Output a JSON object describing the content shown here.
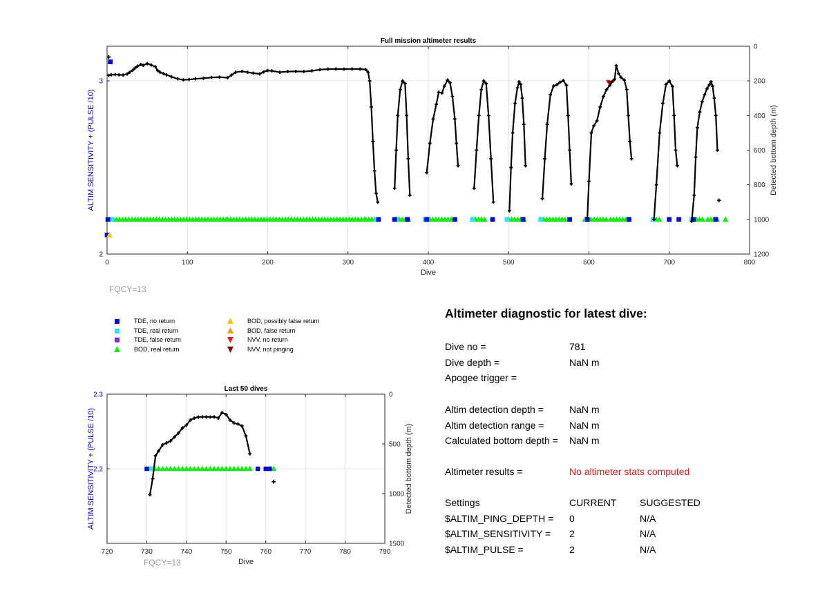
{
  "colors": {
    "axis_left": "#0000b8",
    "tde_no_return": "#0a0ad0",
    "tde_real_return": "#33dfff",
    "tde_false_return": "#7d2fd4",
    "bod_real_return": "#17e817",
    "bod_possibly_false": "#f5c518",
    "bod_false": "#f39a18",
    "nvv_no_return": "#e02020",
    "nvv_not_pinging": "#7a0a0a",
    "bottom_line": "#000000",
    "warning_text": "#d41c1c",
    "fqcy_text": "#9a9a9a"
  },
  "chart_data": [
    {
      "id": "full",
      "type": "line",
      "title": "Full mission altimeter results",
      "xlabel": "Dive",
      "ylabel_left": "ALTIM SENSITIVITY + (PULSE /10)",
      "ylabel_right": "Detected bottom depth (m)",
      "xlim": [
        0,
        800
      ],
      "ylim_left": [
        2,
        3.2
      ],
      "ylim_right": [
        0,
        1200
      ],
      "right_reversed": true,
      "x_ticks": [
        "0",
        "100",
        "200",
        "300",
        "400",
        "500",
        "600",
        "700",
        "800"
      ],
      "y_left_ticks": [
        "2",
        "3"
      ],
      "y_right_ticks": [
        "0",
        "200",
        "400",
        "600",
        "800",
        "1000",
        "1200"
      ],
      "grid": true,
      "fqcy_label": "FQCY=13",
      "bottom_depth_segments": [
        [
          [
            2,
            168
          ],
          [
            5,
            165
          ],
          [
            10,
            163
          ],
          [
            15,
            165
          ],
          [
            20,
            166
          ],
          [
            25,
            160
          ],
          [
            28,
            150
          ],
          [
            32,
            138
          ],
          [
            35,
            125
          ],
          [
            38,
            115
          ],
          [
            42,
            105
          ],
          [
            45,
            110
          ],
          [
            50,
            100
          ],
          [
            55,
            108
          ],
          [
            60,
            118
          ],
          [
            63,
            140
          ],
          [
            66,
            150
          ],
          [
            70,
            158
          ],
          [
            74,
            165
          ],
          [
            80,
            176
          ],
          [
            88,
            188
          ],
          [
            95,
            194
          ],
          [
            102,
            192
          ],
          [
            110,
            188
          ],
          [
            120,
            185
          ],
          [
            130,
            180
          ],
          [
            140,
            178
          ],
          [
            150,
            182
          ],
          [
            155,
            166
          ],
          [
            160,
            150
          ],
          [
            168,
            145
          ],
          [
            175,
            150
          ],
          [
            182,
            155
          ],
          [
            190,
            160
          ],
          [
            195,
            148
          ],
          [
            200,
            140
          ],
          [
            205,
            142
          ],
          [
            215,
            150
          ],
          [
            225,
            146
          ],
          [
            235,
            145
          ],
          [
            245,
            146
          ],
          [
            255,
            142
          ],
          [
            265,
            135
          ],
          [
            275,
            132
          ],
          [
            285,
            131
          ],
          [
            295,
            132
          ],
          [
            305,
            131
          ],
          [
            315,
            132
          ],
          [
            322,
            134
          ],
          [
            325,
            150
          ],
          [
            327,
            200
          ],
          [
            329,
            350
          ],
          [
            331,
            550
          ],
          [
            333,
            720
          ],
          [
            335,
            850
          ],
          [
            337,
            900
          ]
        ],
        [
          [
            358,
            820
          ],
          [
            360,
            600
          ],
          [
            362,
            400
          ],
          [
            365,
            250
          ],
          [
            368,
            200
          ],
          [
            371,
            215
          ],
          [
            373,
            400
          ],
          [
            375,
            650
          ],
          [
            377,
            860
          ]
        ],
        [
          [
            398,
            730
          ],
          [
            402,
            560
          ],
          [
            406,
            420
          ],
          [
            410,
            335
          ],
          [
            413,
            265
          ],
          [
            417,
            270
          ],
          [
            420,
            230
          ],
          [
            424,
            195
          ],
          [
            427,
            210
          ],
          [
            430,
            290
          ],
          [
            433,
            420
          ],
          [
            435,
            560
          ],
          [
            437,
            690
          ]
        ],
        [
          [
            457,
            820
          ],
          [
            460,
            600
          ],
          [
            463,
            400
          ],
          [
            466,
            250
          ],
          [
            469,
            200
          ],
          [
            472,
            215
          ],
          [
            475,
            400
          ],
          [
            478,
            650
          ],
          [
            481,
            900
          ]
        ],
        [
          [
            501,
            950
          ],
          [
            503,
            700
          ],
          [
            505,
            500
          ],
          [
            508,
            330
          ],
          [
            511,
            240
          ],
          [
            513,
            205
          ],
          [
            515,
            220
          ],
          [
            517,
            300
          ],
          [
            519,
            450
          ],
          [
            521,
            690
          ]
        ],
        [
          [
            542,
            880
          ],
          [
            545,
            650
          ],
          [
            548,
            450
          ],
          [
            552,
            280
          ],
          [
            556,
            230
          ],
          [
            560,
            222
          ],
          [
            564,
            208
          ],
          [
            568,
            198
          ],
          [
            572,
            225
          ],
          [
            574,
            400
          ],
          [
            576,
            600
          ],
          [
            578,
            795
          ]
        ],
        [
          [
            598,
            990
          ],
          [
            600,
            780
          ],
          [
            603,
            500
          ],
          [
            606,
            460
          ],
          [
            610,
            430
          ],
          [
            614,
            350
          ],
          [
            618,
            290
          ],
          [
            622,
            250
          ],
          [
            626,
            225
          ],
          [
            630,
            200
          ],
          [
            632,
            190
          ],
          [
            634,
            112
          ],
          [
            637,
            158
          ],
          [
            640,
            180
          ],
          [
            644,
            195
          ],
          [
            647,
            250
          ],
          [
            649,
            400
          ],
          [
            651,
            550
          ],
          [
            653,
            650
          ]
        ],
        [
          [
            681,
            1000
          ],
          [
            684,
            800
          ],
          [
            688,
            500
          ],
          [
            692,
            330
          ],
          [
            696,
            220
          ],
          [
            700,
            200
          ],
          [
            704,
            232
          ],
          [
            706,
            400
          ],
          [
            708,
            600
          ],
          [
            710,
            690
          ]
        ],
        [
          [
            728,
            1010
          ],
          [
            731,
            860
          ],
          [
            733,
            640
          ],
          [
            735,
            470
          ],
          [
            738,
            380
          ],
          [
            741,
            320
          ],
          [
            744,
            280
          ],
          [
            747,
            245
          ],
          [
            750,
            222
          ],
          [
            752,
            205
          ],
          [
            754,
            230
          ],
          [
            756,
            300
          ],
          [
            758,
            400
          ],
          [
            760,
            600
          ]
        ]
      ],
      "bottom_depth_isolated": [
        [
          2,
          62
        ],
        [
          762,
          890
        ]
      ],
      "bod_real_return_ranges": [
        [
          8,
          30
        ],
        [
          31,
          150
        ],
        [
          150,
          322
        ],
        [
          322,
          334
        ],
        [
          360,
          376
        ],
        [
          398,
          430
        ],
        [
          455,
          472
        ],
        [
          500,
          519
        ],
        [
          540,
          573
        ],
        [
          595,
          625
        ],
        [
          627,
          650
        ],
        [
          680,
          688
        ],
        [
          730,
          745
        ],
        [
          748,
          761
        ]
      ],
      "bod_real_return_points": [
        [
          8
        ],
        [
          770
        ]
      ],
      "tde_no_return_x": [
        1,
        338,
        358,
        374,
        398,
        433,
        480,
        518,
        576,
        598,
        650,
        700,
        712,
        730,
        758
      ],
      "tde_real_return_x": [
        6,
        335,
        360,
        396,
        455,
        498,
        540,
        597,
        680,
        728
      ],
      "tde_no_return_high": [
        [
          4,
          3.11
        ]
      ],
      "tde_no_return_low": [
        [
          0,
          2.11
        ]
      ],
      "bod_possibly_false_low": [
        [
          3,
          2.11
        ]
      ],
      "nvv_no_return_points": [
        [
          624,
          2.995
        ]
      ],
      "nvv_not_pinging_points": [
        [
          626,
          2.99
        ]
      ]
    },
    {
      "id": "last50",
      "type": "line",
      "title": "Last 50 dives",
      "xlabel": "Dive",
      "ylabel_left": "ALTIM SENSITIVITY + (PULSE /10)",
      "ylabel_right": "Detected bottom depth (m)",
      "xlim": [
        720,
        790
      ],
      "ylim_left": [
        2.1,
        2.3
      ],
      "ylim_right": [
        0,
        1500
      ],
      "right_reversed": true,
      "x_ticks": [
        "720",
        "730",
        "740",
        "750",
        "760",
        "770",
        "780",
        "790"
      ],
      "y_left_ticks": [
        "2.2",
        "2.3"
      ],
      "y_right_ticks": [
        "0",
        "500",
        "1000",
        "1500"
      ],
      "grid": true,
      "fqcy_label": "FQCY=13",
      "bottom_depth": [
        [
          730.8,
          1010
        ],
        [
          731.5,
          850
        ],
        [
          732.2,
          620
        ],
        [
          733,
          570
        ],
        [
          734,
          510
        ],
        [
          735,
          490
        ],
        [
          736,
          470
        ],
        [
          737,
          430
        ],
        [
          738,
          390
        ],
        [
          739,
          340
        ],
        [
          740,
          310
        ],
        [
          741,
          260
        ],
        [
          742,
          240
        ],
        [
          743,
          230
        ],
        [
          744,
          228
        ],
        [
          745,
          228
        ],
        [
          746,
          230
        ],
        [
          747,
          228
        ],
        [
          748,
          240
        ],
        [
          749,
          185
        ],
        [
          750,
          205
        ],
        [
          751,
          260
        ],
        [
          752,
          290
        ],
        [
          753,
          300
        ],
        [
          754,
          320
        ],
        [
          755,
          420
        ],
        [
          756,
          600
        ]
      ],
      "bottom_depth_isolated": [
        [
          762,
          880
        ]
      ],
      "bod_real_return_x": [
        731,
        732,
        733,
        734,
        735,
        736,
        737,
        738,
        739,
        740,
        741,
        742,
        743,
        744,
        745,
        746,
        747,
        748,
        749,
        750,
        751,
        752,
        753,
        754,
        755,
        756,
        761,
        762
      ],
      "tde_no_return_x": [
        730,
        758,
        760,
        761
      ],
      "tde_real_return_x": [
        731
      ]
    }
  ],
  "legend": [
    {
      "label": "TDE, no return",
      "symbol": "square",
      "color_key": "tde_no_return"
    },
    {
      "label": "TDE, real return",
      "symbol": "square",
      "color_key": "tde_real_return"
    },
    {
      "label": "TDE, false return",
      "symbol": "square",
      "color_key": "tde_false_return"
    },
    {
      "label": "BOD, real return",
      "symbol": "triangle-up",
      "color_key": "bod_real_return"
    },
    {
      "label": "BOD, possibly false return",
      "symbol": "triangle-up",
      "color_key": "bod_possibly_false"
    },
    {
      "label": "BOD, false return",
      "symbol": "triangle-up",
      "color_key": "bod_false"
    },
    {
      "label": "NVV, no return",
      "symbol": "triangle-down",
      "color_key": "nvv_no_return"
    },
    {
      "label": "NVV, not pinging",
      "symbol": "triangle-down",
      "color_key": "nvv_not_pinging"
    }
  ],
  "diagnostic": {
    "title": "Altimeter diagnostic for latest dive:",
    "rows": [
      {
        "label": "Dive no =",
        "value": "781"
      },
      {
        "label": "Dive depth =",
        "value": "NaN m"
      },
      {
        "label": "Apogee trigger =",
        "value": ""
      },
      {
        "label": "Altim detection depth =",
        "value": "NaN m"
      },
      {
        "label": "Altim detection range =",
        "value": "NaN m"
      },
      {
        "label": "Calculated bottom depth =",
        "value": "NaN m"
      },
      {
        "label": "Altimeter results =",
        "value": "No altimeter stats computed"
      }
    ],
    "settings_header": {
      "label": "Settings",
      "current": "CURRENT",
      "suggested": "SUGGESTED"
    },
    "settings": [
      {
        "label": "$ALTIM_PING_DEPTH =",
        "current": "0",
        "suggested": "N/A"
      },
      {
        "label": "$ALTIM_SENSITIVITY =",
        "current": "2",
        "suggested": "N/A"
      },
      {
        "label": "$ALTIM_PULSE =",
        "current": "2",
        "suggested": "N/A"
      }
    ]
  }
}
